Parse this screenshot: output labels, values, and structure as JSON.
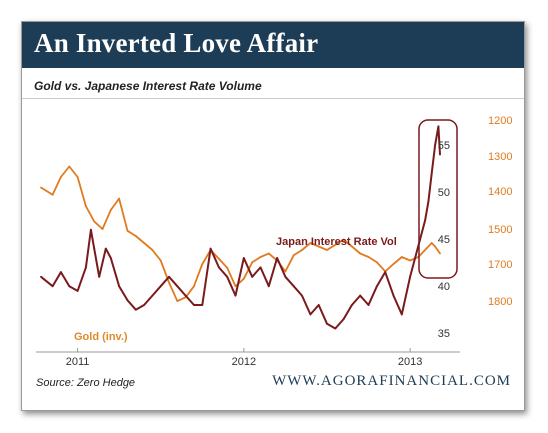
{
  "header": {
    "title": "An Inverted Love Affair"
  },
  "chart_data": {
    "type": "line",
    "title": "Gold vs. Japanese Interest Rate Volume",
    "x_ticks": [
      "2011",
      "2012",
      "2013"
    ],
    "x_range": [
      2010.75,
      2013.3
    ],
    "left_axis": {
      "ticks": [
        35,
        40,
        45,
        50,
        55
      ],
      "range": [
        33,
        58
      ]
    },
    "right_axis": {
      "ticks": [
        1200,
        1300,
        1400,
        1500,
        1700,
        1800
      ],
      "inverted": true
    },
    "grid": false,
    "series": [
      {
        "name": "Japan Interest Rate Vol",
        "color": "#7a1a1d",
        "axis": "left",
        "x": [
          2010.78,
          2010.85,
          2010.9,
          2010.95,
          2011.0,
          2011.05,
          2011.08,
          2011.1,
          2011.13,
          2011.17,
          2011.2,
          2011.25,
          2011.3,
          2011.35,
          2011.4,
          2011.45,
          2011.5,
          2011.55,
          2011.6,
          2011.65,
          2011.7,
          2011.75,
          2011.8,
          2011.85,
          2011.9,
          2011.95,
          2012.0,
          2012.05,
          2012.1,
          2012.15,
          2012.2,
          2012.25,
          2012.3,
          2012.35,
          2012.4,
          2012.45,
          2012.5,
          2012.55,
          2012.6,
          2012.65,
          2012.7,
          2012.75,
          2012.8,
          2012.85,
          2012.9,
          2012.95,
          2013.0,
          2013.03,
          2013.06,
          2013.09,
          2013.11,
          2013.13,
          2013.15,
          2013.17,
          2013.18
        ],
        "values": [
          41,
          40,
          41.5,
          40,
          39.5,
          42,
          46,
          44,
          41,
          44,
          43,
          40,
          38.5,
          37.5,
          38,
          39,
          40,
          41,
          40,
          39,
          38,
          38,
          44,
          42,
          41,
          39,
          43,
          41,
          42,
          40,
          43,
          41,
          40,
          39,
          37,
          38,
          36,
          35.5,
          36.5,
          38,
          39,
          38,
          40,
          41.5,
          39,
          37,
          41,
          43,
          45,
          47,
          49,
          52,
          55,
          57,
          54
        ]
      },
      {
        "name": "Gold (inv.)",
        "color": "#e07b1f",
        "axis": "right",
        "x": [
          2010.78,
          2010.85,
          2010.9,
          2010.95,
          2011.0,
          2011.05,
          2011.1,
          2011.15,
          2011.2,
          2011.25,
          2011.3,
          2011.35,
          2011.4,
          2011.45,
          2011.5,
          2011.55,
          2011.6,
          2011.65,
          2011.7,
          2011.75,
          2011.8,
          2011.85,
          2011.9,
          2011.95,
          2012.0,
          2012.05,
          2012.1,
          2012.15,
          2012.2,
          2012.25,
          2012.3,
          2012.35,
          2012.4,
          2012.45,
          2012.5,
          2012.55,
          2012.6,
          2012.65,
          2012.7,
          2012.75,
          2012.8,
          2012.85,
          2012.9,
          2012.95,
          2013.0,
          2013.05,
          2013.1,
          2013.13,
          2013.15,
          2013.18
        ],
        "values": [
          1390,
          1410,
          1360,
          1330,
          1360,
          1440,
          1480,
          1500,
          1450,
          1420,
          1510,
          1540,
          1580,
          1620,
          1680,
          1750,
          1800,
          1790,
          1760,
          1700,
          1620,
          1670,
          1710,
          1760,
          1740,
          1690,
          1660,
          1640,
          1680,
          1720,
          1650,
          1620,
          1580,
          1600,
          1620,
          1590,
          1560,
          1600,
          1640,
          1660,
          1690,
          1720,
          1700,
          1660,
          1680,
          1660,
          1610,
          1580,
          1600,
          1640
        ]
      }
    ],
    "annotations": [
      "Japan Interest Rate Vol",
      "Gold (inv.)"
    ]
  },
  "footer": {
    "source": "Source:  Zero Hedge",
    "site": "WWW.AGORAFINANCIAL.COM"
  }
}
